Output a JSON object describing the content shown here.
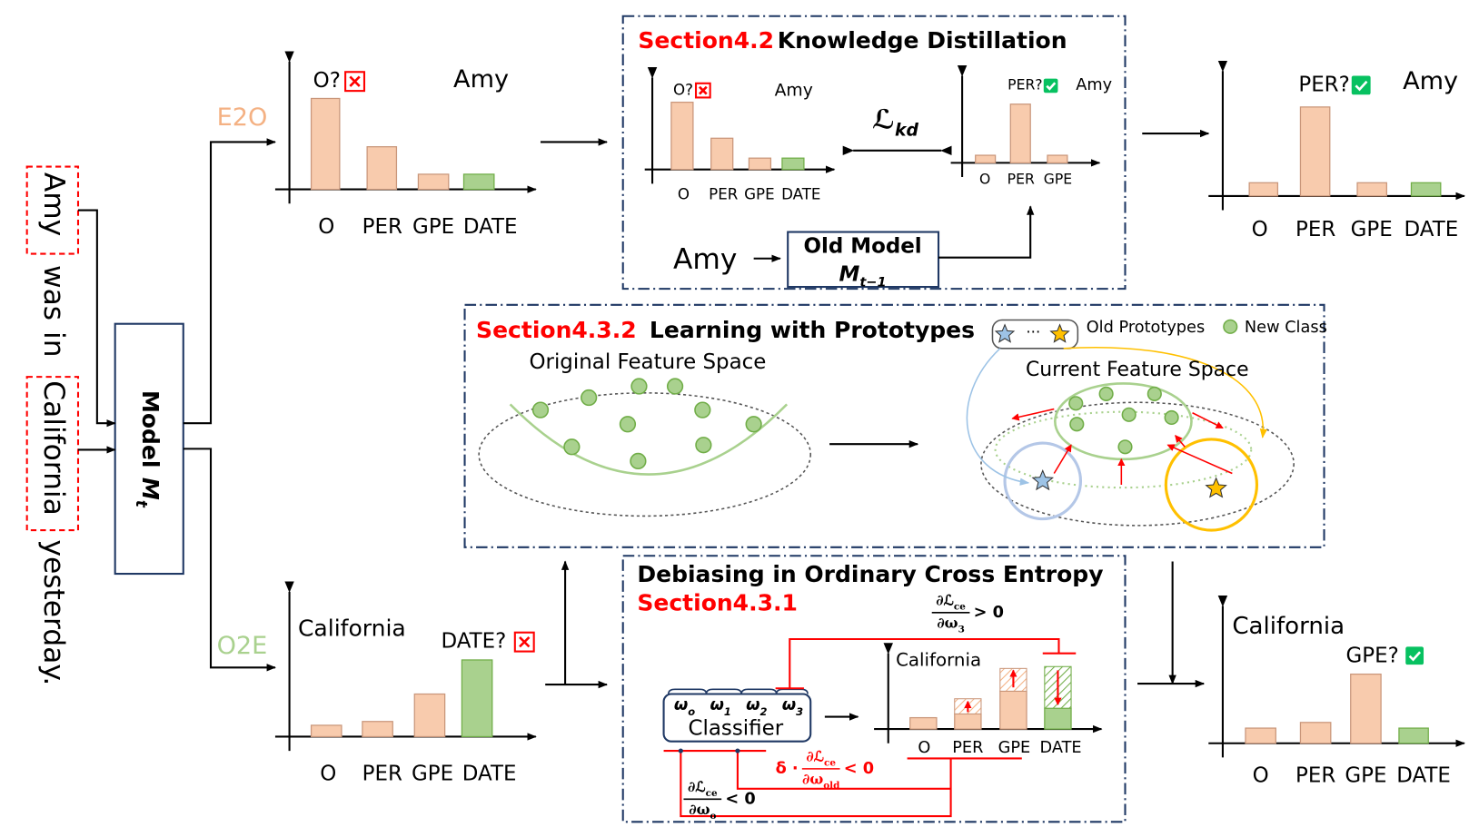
{
  "sentence": {
    "words": [
      "Amy",
      "was",
      "in",
      "California",
      "yesterday."
    ]
  },
  "model": {
    "label": "Model",
    "symbol": "M",
    "subscript": "t"
  },
  "branches": {
    "e2o": "E2O",
    "o2e": "O2E"
  },
  "e2o_chart": {
    "word": "Amy",
    "prediction": "O?",
    "categories": [
      "O",
      "PER",
      "GPE",
      "DATE"
    ]
  },
  "knowledge_distillation": {
    "section": "Section4.2",
    "title": "Knowledge Distillation",
    "loss": {
      "symbol": "ℒ",
      "subscript": "kd"
    },
    "student_chart": {
      "word": "Amy",
      "prediction": "O?",
      "categories": [
        "O",
        "PER",
        "GPE",
        "DATE"
      ]
    },
    "teacher_chart": {
      "word": "Amy",
      "prediction": "PER?",
      "categories": [
        "O",
        "PER",
        "GPE"
      ]
    },
    "input": "Amy",
    "old_model": {
      "label": "Old Model",
      "symbol": "M",
      "subscript": "t−1"
    }
  },
  "e2o_result": {
    "word": "Amy",
    "prediction": "PER?",
    "categories": [
      "O",
      "PER",
      "GPE",
      "DATE"
    ]
  },
  "prototypes": {
    "section": "Section4.3.2",
    "title": "Learning with Prototypes",
    "original_space": "Original Feature Space",
    "current_space": "Current Feature Space",
    "legend": {
      "ellipsis": "···",
      "old": "Old Prototypes",
      "new": "New Class"
    }
  },
  "o2e_chart": {
    "word": "California",
    "prediction": "DATE?",
    "categories": [
      "O",
      "PER",
      "GPE",
      "DATE"
    ]
  },
  "debiasing": {
    "title": "Debiasing in Ordinary Cross Entropy",
    "section": "Section4.3.1",
    "classifier": "Classifier",
    "weights": [
      {
        "symbol": "ω",
        "subscript": "o"
      },
      {
        "symbol": "ω",
        "subscript": "1"
      },
      {
        "symbol": "ω",
        "subscript": "2"
      },
      {
        "symbol": "ω",
        "subscript": "3"
      }
    ],
    "chart": {
      "word": "California",
      "categories": [
        "O",
        "PER",
        "GPE",
        "DATE"
      ]
    },
    "equations": [
      {
        "numerator": "∂ℒ",
        "numerator_sub": "ce",
        "denominator": "∂ω",
        "denominator_sub": "3",
        "relation": "> 0"
      },
      {
        "prefix": "δ ·",
        "numerator": "∂ℒ",
        "numerator_sub": "ce",
        "denominator": "∂ω",
        "denominator_sub": "old",
        "relation": "< 0"
      },
      {
        "numerator": "∂ℒ",
        "numerator_sub": "ce",
        "denominator": "∂ω",
        "denominator_sub": "o",
        "relation": "< 0"
      }
    ]
  },
  "o2e_result": {
    "word": "California",
    "prediction": "GPE?",
    "categories": [
      "O",
      "PER",
      "GPE",
      "DATE"
    ]
  }
}
